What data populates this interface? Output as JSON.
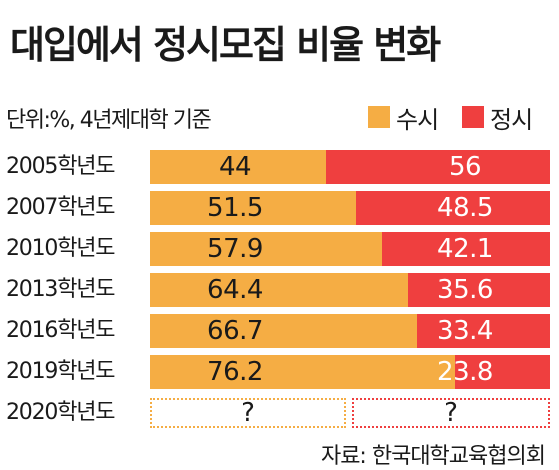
{
  "header": {
    "title": "대입에서 정시모집 비율 변화",
    "subtitle": "단위:%, 4년제대학 기준"
  },
  "colors": {
    "susi": "#f5ad44",
    "jeongsi": "#ef3f3f"
  },
  "legend": [
    {
      "label": "수시",
      "color": "#f5ad44"
    },
    {
      "label": "정시",
      "color": "#ef3f3f"
    }
  ],
  "chart_data": {
    "type": "bar",
    "orientation": "horizontal",
    "stacked": true,
    "title": "대입에서 정시모집 비율 변화",
    "subtitle": "단위:%, 4년제대학 기준",
    "categories": [
      "2005학년도",
      "2007학년도",
      "2010학년도",
      "2013학년도",
      "2016학년도",
      "2019학년도",
      "2020학년도"
    ],
    "series": [
      {
        "name": "수시",
        "values": [
          44,
          51.5,
          57.9,
          64.4,
          66.7,
          76.2,
          null
        ],
        "labels": [
          "44",
          "51.5",
          "57.9",
          "64.4",
          "66.7",
          "76.2",
          "?"
        ]
      },
      {
        "name": "정시",
        "values": [
          56,
          48.5,
          42.1,
          35.6,
          33.4,
          23.8,
          null
        ],
        "labels": [
          "56",
          "48.5",
          "42.1",
          "35.6",
          "33.4",
          "23.8",
          "?"
        ]
      }
    ],
    "xlim": [
      0,
      100
    ],
    "legend_position": "top-right",
    "grid": false
  },
  "source": "자료: 한국대학교육협의회"
}
